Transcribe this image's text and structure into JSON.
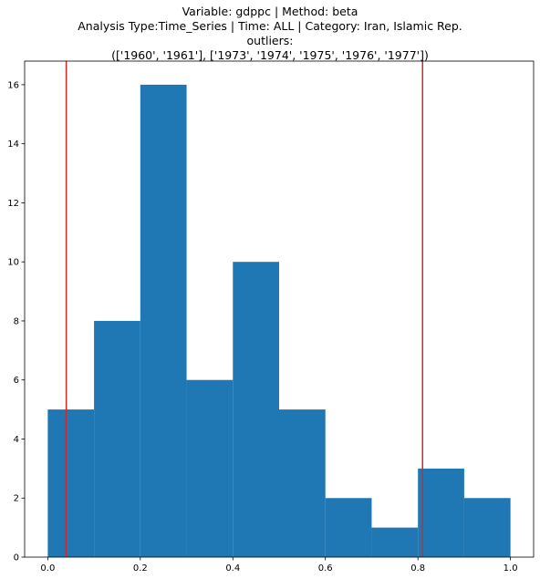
{
  "chart_data": {
    "type": "histogram",
    "title_lines": [
      "Variable: gdppc | Method: beta",
      "Analysis Type:Time_Series | Time: ALL | Category: Iran, Islamic Rep.",
      "outliers:",
      "(['1960', '1961'], ['1973', '1974', '1975', '1976', '1977'])"
    ],
    "bins": [
      {
        "start": 0.0,
        "end": 0.1,
        "count": 5
      },
      {
        "start": 0.1,
        "end": 0.2,
        "count": 8
      },
      {
        "start": 0.2,
        "end": 0.3,
        "count": 16
      },
      {
        "start": 0.3,
        "end": 0.4,
        "count": 6
      },
      {
        "start": 0.4,
        "end": 0.5,
        "count": 10
      },
      {
        "start": 0.5,
        "end": 0.6,
        "count": 5
      },
      {
        "start": 0.6,
        "end": 0.7,
        "count": 2
      },
      {
        "start": 0.7,
        "end": 0.8,
        "count": 1
      },
      {
        "start": 0.8,
        "end": 0.9,
        "count": 3
      },
      {
        "start": 0.9,
        "end": 1.0,
        "count": 2
      }
    ],
    "vertical_lines": [
      0.04,
      0.81
    ],
    "xlim": [
      -0.05,
      1.05
    ],
    "ylim": [
      0,
      16.8
    ],
    "xticks": [
      0.0,
      0.2,
      0.4,
      0.6,
      0.8,
      1.0
    ],
    "xtick_labels": [
      "0.0",
      "0.2",
      "0.4",
      "0.6",
      "0.8",
      "1.0"
    ],
    "yticks": [
      0,
      2,
      4,
      6,
      8,
      10,
      12,
      14,
      16
    ],
    "ytick_labels": [
      "0",
      "2",
      "4",
      "6",
      "8",
      "10",
      "12",
      "14",
      "16"
    ],
    "xlabel": "",
    "ylabel": "",
    "grid": false,
    "bar_color": "#1f77b4",
    "line_color": "#d62728"
  }
}
